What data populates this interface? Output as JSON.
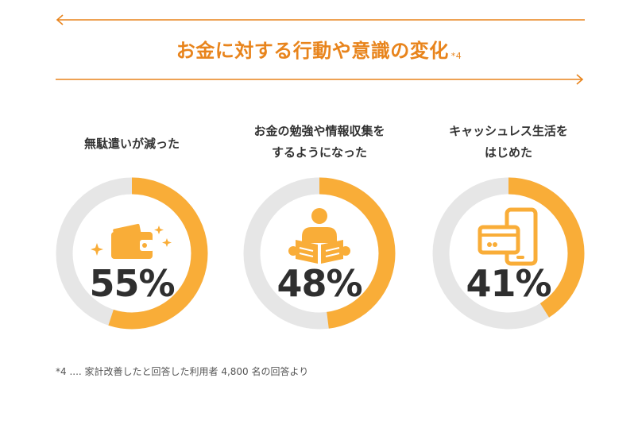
{
  "heading": {
    "title": "お金に対する行動や意識の変化",
    "note_ref": "*4"
  },
  "colors": {
    "accent": "#e8841c",
    "ring_fill": "#f9ad38",
    "ring_track": "#e6e6e6",
    "icon": "#f9ad38"
  },
  "chart_data": {
    "type": "pie",
    "variant": "donut",
    "items": [
      {
        "label_line1": "無駄遣いが減った",
        "label_line2": "",
        "value": 55,
        "display": "55%",
        "icon": "wallet-icon"
      },
      {
        "label_line1": "お金の勉強や情報収集を",
        "label_line2": "するようになった",
        "value": 48,
        "display": "48%",
        "icon": "reading-person-icon"
      },
      {
        "label_line1": "キャッシュレス生活を",
        "label_line2": "はじめた",
        "value": 41,
        "display": "41%",
        "icon": "card-phone-icon"
      }
    ]
  },
  "footnote": "*4 .... 家計改善したと回答した利用者 4,800 名の回答より"
}
